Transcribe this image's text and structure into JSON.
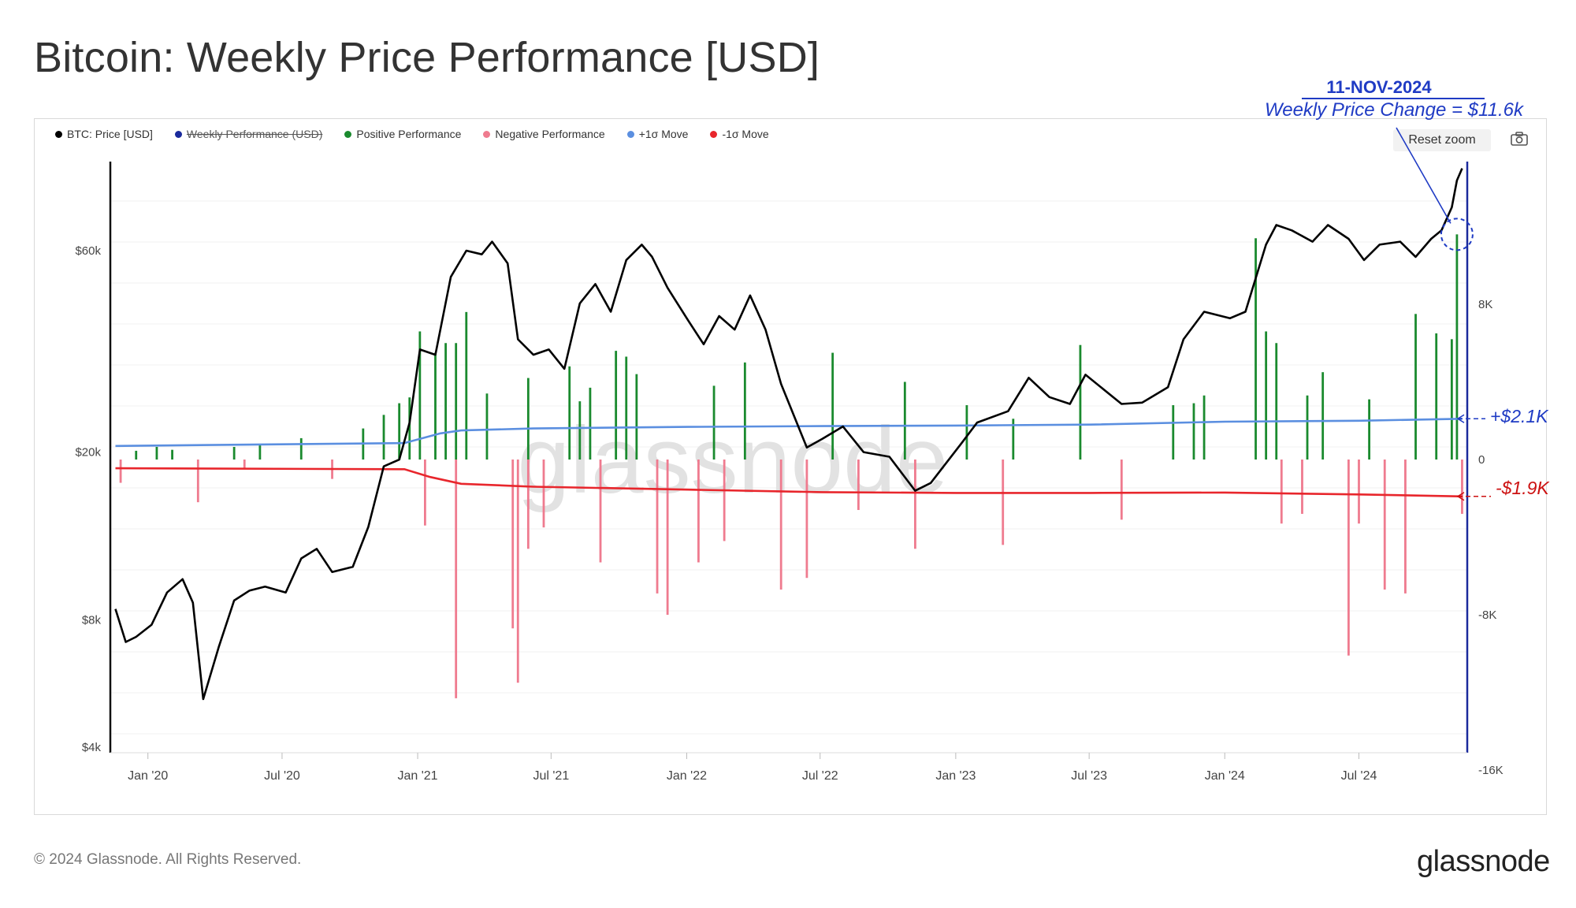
{
  "title": "Bitcoin: Weekly Price Performance [USD]",
  "legend": {
    "price": "BTC: Price [USD]",
    "weekly": "Weekly Performance (USD)",
    "positive": "Positive Performance",
    "negative": "Negative Performance",
    "plus_sigma": "+1σ Move",
    "minus_sigma": "-1σ Move"
  },
  "reset_zoom": "Reset zoom",
  "camera_icon": "camera-icon",
  "annotations": {
    "date": "11-NOV-2024",
    "change": "Weekly Price Change = $11.6k",
    "plus_label": "+$2.1K",
    "minus_label": "-$1.9K"
  },
  "footer": {
    "copyright": "© 2024 Glassnode. All Rights Reserved.",
    "brand": "glassnode"
  },
  "watermark": "glassnode",
  "colors": {
    "price": "#000000",
    "positive": "#1a8a2e",
    "negative": "#ef7b8f",
    "plus_sigma": "#5b8fe0",
    "minus_sigma": "#e8262c",
    "annotation_blue": "#1f3bc4",
    "annotation_red": "#cc1111",
    "right_axis": "#1a2a9c"
  },
  "chart_data": {
    "type": "line",
    "title": "Bitcoin: Weekly Price Performance [USD]",
    "x_tick_labels": [
      "Jan '20",
      "Jul '20",
      "Jan '21",
      "Jul '21",
      "Jan '22",
      "Jul '22",
      "Jan '23",
      "Jul '23",
      "Jan '24",
      "Jul '24"
    ],
    "left_axis": {
      "scale": "log",
      "ticks": [
        4000,
        8000,
        20000,
        60000
      ],
      "tick_labels": [
        "$4k",
        "$8k",
        "$20k",
        "$60k"
      ],
      "range": [
        4000,
        110000
      ]
    },
    "right_axis": {
      "ticks": [
        -16000,
        -8000,
        0,
        8000
      ],
      "tick_labels": [
        "-16K",
        "-8K",
        "0",
        "8K"
      ],
      "range": [
        -16000,
        14000
      ]
    },
    "grid": true,
    "legend_position": "top-left",
    "price_series": {
      "name": "BTC: Price [USD]",
      "x": [
        "2019-11-18",
        "2019-12-02",
        "2019-12-16",
        "2020-01-06",
        "2020-01-27",
        "2020-02-17",
        "2020-03-02",
        "2020-03-16",
        "2020-04-06",
        "2020-04-27",
        "2020-05-18",
        "2020-06-08",
        "2020-07-06",
        "2020-07-27",
        "2020-08-17",
        "2020-09-07",
        "2020-10-05",
        "2020-10-26",
        "2020-11-16",
        "2020-12-07",
        "2020-12-21",
        "2021-01-04",
        "2021-01-25",
        "2021-02-15",
        "2021-03-08",
        "2021-03-29",
        "2021-04-12",
        "2021-05-03",
        "2021-05-17",
        "2021-06-07",
        "2021-06-28",
        "2021-07-19",
        "2021-08-09",
        "2021-08-30",
        "2021-09-20",
        "2021-10-11",
        "2021-11-01",
        "2021-11-15",
        "2021-12-06",
        "2022-01-03",
        "2022-01-24",
        "2022-02-14",
        "2022-03-07",
        "2022-03-28",
        "2022-04-18",
        "2022-05-09",
        "2022-06-13",
        "2022-07-04",
        "2022-08-01",
        "2022-08-29",
        "2022-10-03",
        "2022-11-07",
        "2022-11-28",
        "2023-01-09",
        "2023-01-30",
        "2023-03-13",
        "2023-04-10",
        "2023-05-08",
        "2023-06-05",
        "2023-06-26",
        "2023-08-14",
        "2023-09-11",
        "2023-10-16",
        "2023-11-06",
        "2023-12-04",
        "2024-01-08",
        "2024-01-29",
        "2024-02-26",
        "2024-03-11",
        "2024-04-01",
        "2024-04-29",
        "2024-05-20",
        "2024-06-17",
        "2024-07-08",
        "2024-07-29",
        "2024-08-26",
        "2024-09-16",
        "2024-10-07",
        "2024-10-21",
        "2024-11-04",
        "2024-11-11",
        "2024-11-18"
      ],
      "values": [
        8500,
        7100,
        7300,
        7800,
        9300,
        10000,
        8800,
        5200,
        6900,
        8900,
        9400,
        9600,
        9300,
        11200,
        11800,
        10400,
        10700,
        13300,
        18500,
        19200,
        23500,
        35000,
        34000,
        52000,
        60000,
        58800,
        63000,
        56000,
        37000,
        34000,
        35000,
        31500,
        45000,
        50000,
        43000,
        57000,
        62000,
        58000,
        49000,
        41000,
        36000,
        42000,
        39000,
        47000,
        39000,
        29000,
        20500,
        21500,
        23000,
        20000,
        19500,
        16200,
        16900,
        21000,
        23500,
        25000,
        30000,
        27000,
        26000,
        30500,
        26000,
        26200,
        28500,
        37000,
        43000,
        41500,
        43000,
        62000,
        69000,
        67000,
        63000,
        69000,
        64000,
        57000,
        62000,
        63000,
        58000,
        64000,
        67000,
        76000,
        88000,
        94000
      ]
    },
    "weekly_performance": {
      "positive": {
        "name": "Positive Performance",
        "x": [
          "2019-12-16",
          "2020-01-13",
          "2020-02-03",
          "2020-04-27",
          "2020-06-01",
          "2020-07-27",
          "2020-10-19",
          "2020-11-16",
          "2020-12-07",
          "2020-12-21",
          "2021-01-04",
          "2021-01-25",
          "2021-02-08",
          "2021-02-22",
          "2021-03-08",
          "2021-04-05",
          "2021-05-31",
          "2021-07-26",
          "2021-08-09",
          "2021-08-23",
          "2021-09-27",
          "2021-10-11",
          "2021-10-25",
          "2022-02-07",
          "2022-03-21",
          "2022-07-18",
          "2022-10-24",
          "2023-01-16",
          "2023-03-20",
          "2023-06-19",
          "2023-10-23",
          "2023-11-20",
          "2023-12-04",
          "2024-02-12",
          "2024-02-26",
          "2024-03-11",
          "2024-04-22",
          "2024-05-13",
          "2024-07-15",
          "2024-09-16",
          "2024-10-14",
          "2024-11-04",
          "2024-11-11"
        ],
        "values": [
          450,
          650,
          500,
          650,
          750,
          1100,
          1600,
          2300,
          2900,
          3200,
          6600,
          5500,
          6000,
          6000,
          7600,
          3400,
          4200,
          4800,
          3000,
          3700,
          5600,
          5300,
          4400,
          3800,
          5000,
          5500,
          4000,
          2800,
          2100,
          5900,
          2800,
          2900,
          3300,
          11400,
          6600,
          6000,
          3300,
          4500,
          3100,
          7500,
          6500,
          6200,
          11600
        ]
      },
      "negative": {
        "name": "Negative Performance",
        "x": [
          "2019-11-25",
          "2020-03-09",
          "2020-05-11",
          "2020-09-07",
          "2021-01-11",
          "2021-02-22",
          "2021-05-10",
          "2021-05-17",
          "2021-05-31",
          "2021-06-21",
          "2021-09-06",
          "2021-11-22",
          "2021-12-06",
          "2022-01-17",
          "2022-02-21",
          "2022-05-09",
          "2022-06-13",
          "2022-08-22",
          "2022-11-07",
          "2023-03-06",
          "2023-08-14",
          "2024-03-18",
          "2024-04-15",
          "2024-06-17",
          "2024-07-01",
          "2024-08-05",
          "2024-09-02",
          "2024-11-18"
        ],
        "values": [
          -1200,
          -2200,
          -500,
          -1000,
          -3400,
          -12300,
          -8700,
          -11500,
          -4600,
          -3500,
          -5300,
          -6900,
          -8000,
          -5300,
          -4200,
          -6700,
          -6100,
          -2600,
          -4600,
          -4400,
          -3100,
          -3300,
          -2800,
          -10100,
          -3300,
          -6700,
          -6900,
          -2800
        ]
      }
    },
    "plus_sigma": {
      "name": "+1σ Move",
      "x": [
        "2019-11-18",
        "2020-12-14",
        "2021-02-01",
        "2021-03-01",
        "2021-06-07",
        "2022-01-03",
        "2022-07-04",
        "2023-01-02",
        "2023-07-03",
        "2024-01-01",
        "2024-07-01",
        "2024-11-18"
      ],
      "values": [
        700,
        850,
        1350,
        1500,
        1600,
        1680,
        1720,
        1750,
        1800,
        1950,
        2000,
        2100
      ]
    },
    "minus_sigma": {
      "name": "-1σ Move",
      "x": [
        "2019-11-18",
        "2020-12-14",
        "2021-01-18",
        "2021-03-01",
        "2021-06-07",
        "2022-01-03",
        "2022-07-04",
        "2023-01-02",
        "2023-07-03",
        "2024-01-01",
        "2024-07-01",
        "2024-11-18"
      ],
      "values": [
        -450,
        -500,
        -900,
        -1250,
        -1400,
        -1550,
        -1680,
        -1720,
        -1720,
        -1700,
        -1800,
        -1900
      ]
    }
  }
}
